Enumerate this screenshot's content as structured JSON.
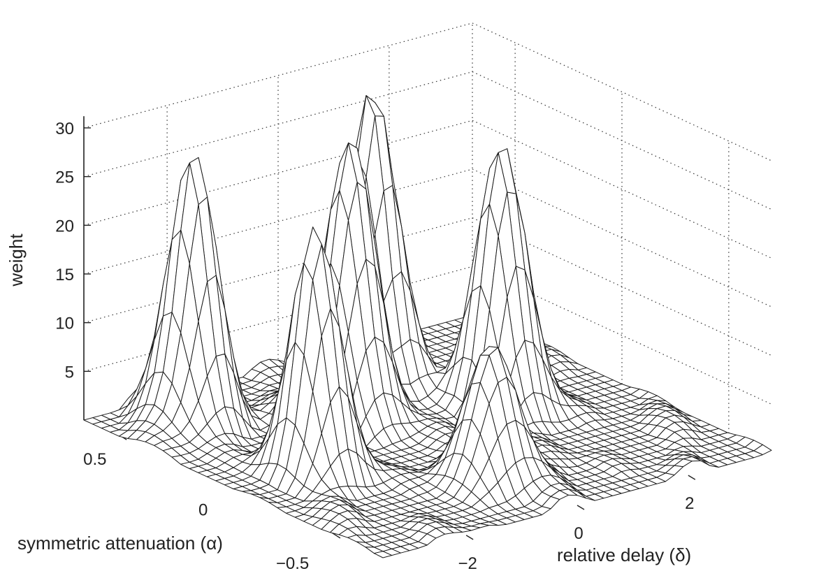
{
  "chart_data": {
    "type": "surface",
    "xlabel": "relative delay (δ)",
    "ylabel": "symmetric attenuation (α)",
    "zlabel": "weight",
    "x_ticks": [
      "−2",
      "0",
      "2"
    ],
    "y_ticks": [
      "−0.5",
      "0",
      "0.5"
    ],
    "z_ticks": [
      "5",
      "10",
      "15",
      "20",
      "25",
      "30"
    ],
    "xlim": [
      -3.5,
      3.5
    ],
    "ylim": [
      -0.7,
      0.7
    ],
    "zlim": [
      0,
      30
    ],
    "grid": true,
    "peaks": [
      {
        "delay": -2.3,
        "attenuation": 0.5,
        "weight": 27
      },
      {
        "delay": -2.2,
        "attenuation": -0.05,
        "weight": 24
      },
      {
        "delay": -0.45,
        "attenuation": 0.25,
        "weight": 29
      },
      {
        "delay": 0.55,
        "attenuation": 0.4,
        "weight": 30
      },
      {
        "delay": 1.5,
        "attenuation": 0.05,
        "weight": 28
      },
      {
        "delay": -0.35,
        "attenuation": -0.4,
        "weight": 15
      }
    ]
  }
}
